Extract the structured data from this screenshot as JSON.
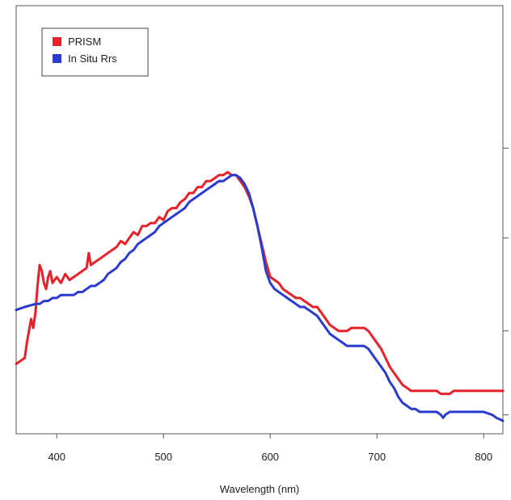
{
  "chart_data": {
    "type": "line",
    "title": "",
    "xlabel": "Wavelength (nm)",
    "ylabel": "",
    "xlim": [
      362,
      818
    ],
    "ylim": [
      0,
      1
    ],
    "xticks": [
      400,
      500,
      600,
      700,
      800
    ],
    "xtick_labels": [
      "400",
      "500",
      "600",
      "700",
      "800"
    ],
    "yticks_right": [
      0.02,
      0.3,
      0.61,
      0.91
    ],
    "grid": false,
    "legend_position": "top-left",
    "series": [
      {
        "name": "PRISM",
        "color": "#e8202a",
        "points": [
          [
            362,
            0.19
          ],
          [
            366,
            0.2
          ],
          [
            370,
            0.21
          ],
          [
            372,
            0.26
          ],
          [
            374,
            0.3
          ],
          [
            376,
            0.34
          ],
          [
            378,
            0.31
          ],
          [
            380,
            0.36
          ],
          [
            382,
            0.45
          ],
          [
            384,
            0.52
          ],
          [
            386,
            0.5
          ],
          [
            388,
            0.46
          ],
          [
            390,
            0.44
          ],
          [
            392,
            0.48
          ],
          [
            394,
            0.5
          ],
          [
            396,
            0.46
          ],
          [
            398,
            0.47
          ],
          [
            400,
            0.48
          ],
          [
            404,
            0.46
          ],
          [
            408,
            0.49
          ],
          [
            412,
            0.47
          ],
          [
            416,
            0.48
          ],
          [
            420,
            0.49
          ],
          [
            424,
            0.5
          ],
          [
            428,
            0.51
          ],
          [
            430,
            0.56
          ],
          [
            432,
            0.52
          ],
          [
            436,
            0.53
          ],
          [
            440,
            0.54
          ],
          [
            444,
            0.55
          ],
          [
            448,
            0.56
          ],
          [
            452,
            0.57
          ],
          [
            456,
            0.58
          ],
          [
            460,
            0.6
          ],
          [
            464,
            0.59
          ],
          [
            468,
            0.61
          ],
          [
            472,
            0.63
          ],
          [
            476,
            0.62
          ],
          [
            480,
            0.65
          ],
          [
            484,
            0.65
          ],
          [
            488,
            0.66
          ],
          [
            492,
            0.66
          ],
          [
            496,
            0.68
          ],
          [
            500,
            0.67
          ],
          [
            504,
            0.7
          ],
          [
            508,
            0.71
          ],
          [
            512,
            0.71
          ],
          [
            516,
            0.73
          ],
          [
            520,
            0.74
          ],
          [
            524,
            0.76
          ],
          [
            528,
            0.76
          ],
          [
            532,
            0.78
          ],
          [
            536,
            0.78
          ],
          [
            540,
            0.8
          ],
          [
            544,
            0.8
          ],
          [
            548,
            0.81
          ],
          [
            552,
            0.82
          ],
          [
            556,
            0.82
          ],
          [
            560,
            0.83
          ],
          [
            564,
            0.82
          ],
          [
            568,
            0.82
          ],
          [
            572,
            0.8
          ],
          [
            576,
            0.78
          ],
          [
            580,
            0.75
          ],
          [
            584,
            0.71
          ],
          [
            588,
            0.65
          ],
          [
            592,
            0.59
          ],
          [
            596,
            0.53
          ],
          [
            600,
            0.48
          ],
          [
            604,
            0.47
          ],
          [
            608,
            0.46
          ],
          [
            612,
            0.44
          ],
          [
            616,
            0.43
          ],
          [
            620,
            0.42
          ],
          [
            624,
            0.41
          ],
          [
            628,
            0.41
          ],
          [
            632,
            0.4
          ],
          [
            636,
            0.39
          ],
          [
            640,
            0.38
          ],
          [
            644,
            0.38
          ],
          [
            648,
            0.36
          ],
          [
            652,
            0.34
          ],
          [
            656,
            0.32
          ],
          [
            660,
            0.31
          ],
          [
            664,
            0.3
          ],
          [
            668,
            0.3
          ],
          [
            672,
            0.3
          ],
          [
            676,
            0.31
          ],
          [
            680,
            0.31
          ],
          [
            684,
            0.31
          ],
          [
            688,
            0.31
          ],
          [
            692,
            0.3
          ],
          [
            696,
            0.28
          ],
          [
            700,
            0.26
          ],
          [
            704,
            0.24
          ],
          [
            708,
            0.21
          ],
          [
            712,
            0.18
          ],
          [
            716,
            0.16
          ],
          [
            720,
            0.14
          ],
          [
            724,
            0.12
          ],
          [
            728,
            0.11
          ],
          [
            732,
            0.1
          ],
          [
            736,
            0.1
          ],
          [
            740,
            0.1
          ],
          [
            744,
            0.1
          ],
          [
            748,
            0.1
          ],
          [
            752,
            0.1
          ],
          [
            756,
            0.1
          ],
          [
            760,
            0.09
          ],
          [
            764,
            0.09
          ],
          [
            768,
            0.09
          ],
          [
            772,
            0.1
          ],
          [
            780,
            0.1
          ],
          [
            790,
            0.1
          ],
          [
            800,
            0.1
          ],
          [
            810,
            0.1
          ],
          [
            818,
            0.1
          ]
        ]
      },
      {
        "name": "In Situ Rrs",
        "color": "#2b3bd0",
        "points": [
          [
            362,
            0.37
          ],
          [
            370,
            0.38
          ],
          [
            380,
            0.39
          ],
          [
            384,
            0.39
          ],
          [
            388,
            0.4
          ],
          [
            392,
            0.4
          ],
          [
            396,
            0.41
          ],
          [
            400,
            0.41
          ],
          [
            404,
            0.42
          ],
          [
            408,
            0.42
          ],
          [
            412,
            0.42
          ],
          [
            416,
            0.42
          ],
          [
            420,
            0.43
          ],
          [
            424,
            0.43
          ],
          [
            428,
            0.44
          ],
          [
            432,
            0.45
          ],
          [
            436,
            0.45
          ],
          [
            440,
            0.46
          ],
          [
            444,
            0.47
          ],
          [
            448,
            0.49
          ],
          [
            452,
            0.5
          ],
          [
            456,
            0.51
          ],
          [
            460,
            0.53
          ],
          [
            464,
            0.54
          ],
          [
            468,
            0.56
          ],
          [
            472,
            0.57
          ],
          [
            476,
            0.59
          ],
          [
            480,
            0.6
          ],
          [
            484,
            0.61
          ],
          [
            488,
            0.62
          ],
          [
            492,
            0.63
          ],
          [
            496,
            0.65
          ],
          [
            500,
            0.66
          ],
          [
            504,
            0.67
          ],
          [
            508,
            0.68
          ],
          [
            512,
            0.69
          ],
          [
            516,
            0.7
          ],
          [
            520,
            0.71
          ],
          [
            524,
            0.73
          ],
          [
            528,
            0.74
          ],
          [
            532,
            0.75
          ],
          [
            536,
            0.76
          ],
          [
            540,
            0.77
          ],
          [
            544,
            0.78
          ],
          [
            548,
            0.79
          ],
          [
            552,
            0.8
          ],
          [
            556,
            0.8
          ],
          [
            560,
            0.81
          ],
          [
            564,
            0.82
          ],
          [
            568,
            0.82
          ],
          [
            572,
            0.81
          ],
          [
            576,
            0.79
          ],
          [
            580,
            0.76
          ],
          [
            584,
            0.71
          ],
          [
            588,
            0.65
          ],
          [
            592,
            0.58
          ],
          [
            596,
            0.5
          ],
          [
            600,
            0.46
          ],
          [
            604,
            0.44
          ],
          [
            608,
            0.43
          ],
          [
            612,
            0.42
          ],
          [
            616,
            0.41
          ],
          [
            620,
            0.4
          ],
          [
            624,
            0.39
          ],
          [
            628,
            0.38
          ],
          [
            632,
            0.38
          ],
          [
            636,
            0.37
          ],
          [
            640,
            0.36
          ],
          [
            644,
            0.35
          ],
          [
            648,
            0.33
          ],
          [
            652,
            0.31
          ],
          [
            656,
            0.29
          ],
          [
            660,
            0.28
          ],
          [
            664,
            0.27
          ],
          [
            668,
            0.26
          ],
          [
            672,
            0.25
          ],
          [
            676,
            0.25
          ],
          [
            680,
            0.25
          ],
          [
            684,
            0.25
          ],
          [
            688,
            0.25
          ],
          [
            692,
            0.24
          ],
          [
            696,
            0.22
          ],
          [
            700,
            0.2
          ],
          [
            704,
            0.18
          ],
          [
            708,
            0.16
          ],
          [
            712,
            0.13
          ],
          [
            716,
            0.11
          ],
          [
            720,
            0.08
          ],
          [
            724,
            0.06
          ],
          [
            728,
            0.05
          ],
          [
            732,
            0.04
          ],
          [
            736,
            0.04
          ],
          [
            740,
            0.03
          ],
          [
            744,
            0.03
          ],
          [
            748,
            0.03
          ],
          [
            752,
            0.03
          ],
          [
            756,
            0.03
          ],
          [
            760,
            0.02
          ],
          [
            762,
            0.01
          ],
          [
            764,
            0.02
          ],
          [
            768,
            0.03
          ],
          [
            772,
            0.03
          ],
          [
            780,
            0.03
          ],
          [
            790,
            0.03
          ],
          [
            800,
            0.03
          ],
          [
            808,
            0.02
          ],
          [
            812,
            0.01
          ],
          [
            818,
            0.0
          ]
        ]
      }
    ]
  }
}
